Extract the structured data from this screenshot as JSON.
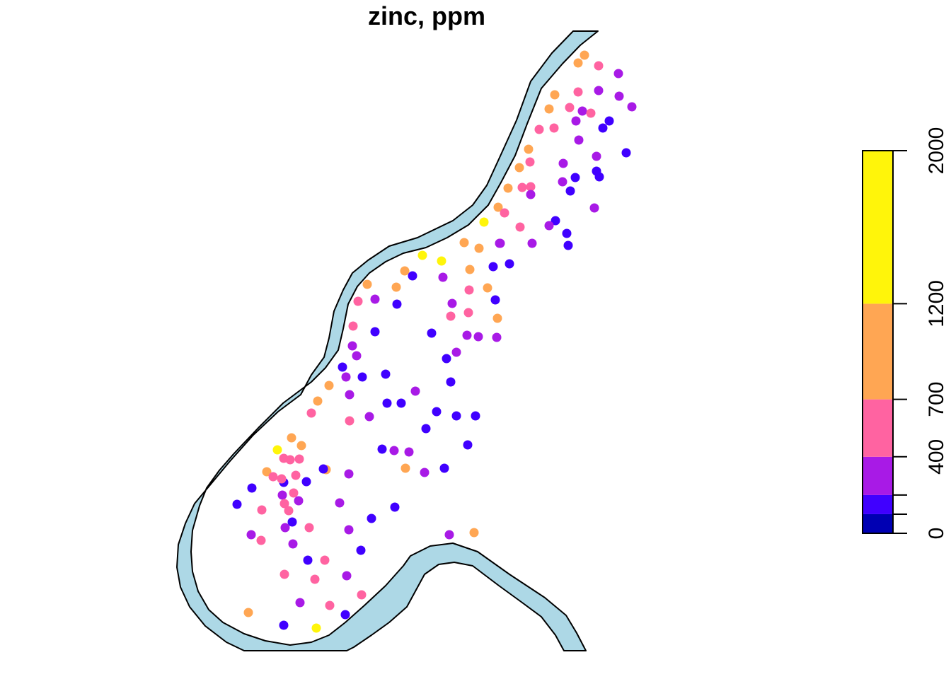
{
  "title": "zinc, ppm",
  "legend": {
    "breaks": [
      0,
      100,
      200,
      400,
      700,
      1200,
      2000
    ],
    "tick_labels": [
      "0",
      "400",
      "700",
      "1200",
      "2000"
    ],
    "colors": [
      "#0000B3",
      "#4000FF",
      "#A81AE6",
      "#FF63A1",
      "#FFA653",
      "#FFF50A"
    ]
  },
  "river_color": "#ADD8E6",
  "points": [
    {
      "v": 1050
    },
    {
      "v": 1050
    },
    {
      "v": 600
    },
    {
      "v": 300
    },
    {
      "v": 300
    },
    {
      "v": 1000
    },
    {
      "v": 600
    },
    {
      "v": 300
    },
    {
      "v": 300
    },
    {
      "v": 1000
    },
    {
      "v": 600
    },
    {
      "v": 300
    },
    {
      "v": 600
    },
    {
      "v": 150
    },
    {
      "v": 150
    },
    {
      "v": 300
    },
    {
      "v": 300
    },
    {
      "v": 300
    },
    {
      "v": 150
    },
    {
      "v": 150
    },
    {
      "v": 600
    },
    {
      "v": 600
    },
    {
      "v": 300
    },
    {
      "v": 150
    },
    {
      "v": 150
    },
    {
      "v": 1000
    },
    {
      "v": 600
    },
    {
      "v": 300
    },
    {
      "v": 150
    },
    {
      "v": 1000
    },
    {
      "v": 600
    },
    {
      "v": 600
    },
    {
      "v": 300
    },
    {
      "v": 300
    },
    {
      "v": 150
    },
    {
      "v": 1000
    },
    {
      "v": 1000
    },
    {
      "v": 600
    },
    {
      "v": 300
    },
    {
      "v": 300
    },
    {
      "v": 150
    },
    {
      "v": 600
    },
    {
      "v": 150
    },
    {
      "v": 1000
    },
    {
      "v": 1000
    },
    {
      "v": 300
    },
    {
      "v": 1500
    },
    {
      "v": 300
    },
    {
      "v": 150
    },
    {
      "v": 150
    },
    {
      "v": 300
    },
    {
      "v": 1500
    },
    {
      "v": 1500
    },
    {
      "v": 1000
    },
    {
      "v": 1000
    },
    {
      "v": 150
    },
    {
      "v": 150
    },
    {
      "v": 1000
    },
    {
      "v": 1000
    },
    {
      "v": 600
    },
    {
      "v": 300
    },
    {
      "v": 600
    },
    {
      "v": 150
    },
    {
      "v": 1000
    },
    {
      "v": 600
    },
    {
      "v": 300
    },
    {
      "v": 300
    },
    {
      "v": 300
    },
    {
      "v": 300
    },
    {
      "v": 150
    },
    {
      "v": 300
    },
    {
      "v": 150
    },
    {
      "v": 150
    },
    {
      "v": 150
    },
    {
      "v": 1000
    },
    {
      "v": 600
    },
    {
      "v": 300
    },
    {
      "v": 300
    },
    {
      "v": 150
    },
    {
      "v": 150
    },
    {
      "v": 600
    },
    {
      "v": 300
    },
    {
      "v": 300
    },
    {
      "v": 150
    },
    {
      "v": 1000
    },
    {
      "v": 1000
    },
    {
      "v": 600
    },
    {
      "v": 300
    },
    {
      "v": 150
    },
    {
      "v": 150
    },
    {
      "v": 600
    },
    {
      "v": 300
    },
    {
      "v": 150
    },
    {
      "v": 150
    },
    {
      "v": 1000
    },
    {
      "v": 300
    },
    {
      "v": 150
    },
    {
      "v": 150
    },
    {
      "v": 150
    },
    {
      "v": 1000
    },
    {
      "v": 300
    },
    {
      "v": 300
    },
    {
      "v": 300
    },
    {
      "v": 150
    },
    {
      "v": 150
    },
    {
      "v": 150
    },
    {
      "v": 150
    },
    {
      "v": 150
    },
    {
      "v": 1500
    },
    {
      "v": 1000
    },
    {
      "v": 1000
    },
    {
      "v": 600
    },
    {
      "v": 600
    },
    {
      "v": 600
    },
    {
      "v": 600
    },
    {
      "v": 1000
    },
    {
      "v": 600
    },
    {
      "v": 150
    },
    {
      "v": 300
    },
    {
      "v": 600
    },
    {
      "v": 600
    },
    {
      "v": 300
    },
    {
      "v": 600
    },
    {
      "v": 150
    },
    {
      "v": 600
    },
    {
      "v": 300
    },
    {
      "v": 600
    },
    {
      "v": 150
    },
    {
      "v": 300
    },
    {
      "v": 150
    },
    {
      "v": 150
    },
    {
      "v": 600
    },
    {
      "v": 300
    },
    {
      "v": 150
    },
    {
      "v": 300
    },
    {
      "v": 600
    },
    {
      "v": 300
    },
    {
      "v": 150
    },
    {
      "v": 600
    },
    {
      "v": 300
    },
    {
      "v": 600
    },
    {
      "v": 600
    },
    {
      "v": 600
    },
    {
      "v": 300
    },
    {
      "v": 600
    },
    {
      "v": 150
    },
    {
      "v": 1000
    },
    {
      "v": 150
    },
    {
      "v": 1500
    },
    {
      "v": 1000
    },
    {
      "v": 300
    }
  ]
}
